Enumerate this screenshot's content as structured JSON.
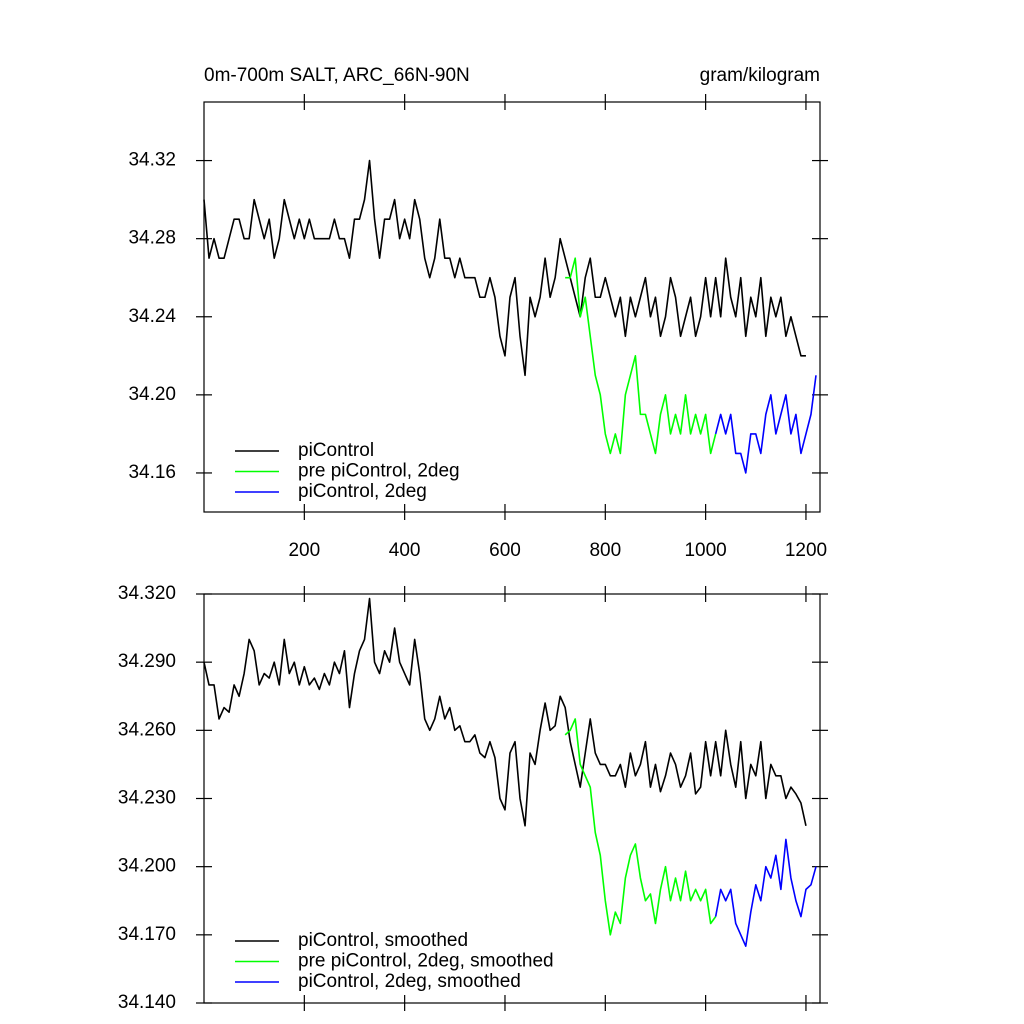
{
  "chart_data": [
    {
      "type": "line",
      "title": "0m-700m SALT, ARC_66N-90N",
      "units": "gram/kilogram",
      "xlim": [
        0,
        1228
      ],
      "xticks": [
        200,
        400,
        600,
        800,
        1000,
        1200
      ],
      "xtick_labels": true,
      "ylim": [
        34.14,
        34.35
      ],
      "yticks": [
        {
          "value": 34.16,
          "label": "34.16"
        },
        {
          "value": 34.2,
          "label": "34.20"
        },
        34.24,
        34.28,
        34.32
      ],
      "series": [
        {
          "name": "piControl",
          "color": "#000000",
          "x": [
            0,
            10,
            20,
            30,
            40,
            50,
            60,
            70,
            80,
            90,
            100,
            110,
            120,
            130,
            140,
            150,
            160,
            170,
            180,
            190,
            200,
            210,
            220,
            230,
            240,
            250,
            260,
            270,
            280,
            290,
            300,
            310,
            320,
            330,
            340,
            350,
            360,
            370,
            380,
            390,
            400,
            410,
            420,
            430,
            440,
            450,
            460,
            470,
            480,
            490,
            500,
            510,
            520,
            530,
            540,
            550,
            560,
            570,
            580,
            590,
            600,
            610,
            620,
            630,
            640,
            650,
            660,
            670,
            680,
            690,
            700,
            710,
            720,
            730,
            740,
            750,
            760,
            770,
            780,
            790,
            800,
            810,
            820,
            830,
            840,
            850,
            860,
            870,
            880,
            890,
            900,
            910,
            920,
            930,
            940,
            950,
            960,
            970,
            980,
            990,
            1000,
            1010,
            1020,
            1030,
            1040,
            1050,
            1060,
            1070,
            1080,
            1090,
            1100,
            1110,
            1120,
            1130,
            1140,
            1150,
            1160,
            1170,
            1180,
            1190,
            1200
          ],
          "values": [
            34.3,
            34.27,
            34.28,
            34.27,
            34.27,
            34.28,
            34.29,
            34.29,
            34.28,
            34.28,
            34.3,
            34.29,
            34.28,
            34.29,
            34.27,
            34.28,
            34.3,
            34.29,
            34.28,
            34.29,
            34.28,
            34.29,
            34.28,
            34.28,
            34.28,
            34.28,
            34.29,
            34.28,
            34.28,
            34.27,
            34.29,
            34.29,
            34.3,
            34.32,
            34.29,
            34.27,
            34.29,
            34.29,
            34.3,
            34.28,
            34.29,
            34.28,
            34.3,
            34.29,
            34.27,
            34.26,
            34.27,
            34.29,
            34.27,
            34.27,
            34.26,
            34.27,
            34.26,
            34.26,
            34.26,
            34.25,
            34.25,
            34.26,
            34.25,
            34.23,
            34.22,
            34.25,
            34.26,
            34.23,
            34.21,
            34.25,
            34.24,
            34.25,
            34.27,
            34.25,
            34.26,
            34.28,
            34.27,
            34.26,
            34.25,
            34.24,
            34.26,
            34.27,
            34.25,
            34.25,
            34.26,
            34.25,
            34.24,
            34.25,
            34.23,
            34.25,
            34.24,
            34.25,
            34.26,
            34.24,
            34.25,
            34.23,
            34.24,
            34.26,
            34.25,
            34.23,
            34.24,
            34.25,
            34.23,
            34.24,
            34.26,
            34.24,
            34.26,
            34.24,
            34.27,
            34.25,
            34.24,
            34.26,
            34.23,
            34.25,
            34.24,
            34.26,
            34.23,
            34.25,
            34.24,
            34.25,
            34.23,
            34.24,
            34.23,
            34.22,
            34.22
          ]
        },
        {
          "name": "pre piControl, 2deg",
          "color": "#00ff00",
          "x": [
            720,
            730,
            740,
            750,
            760,
            770,
            780,
            790,
            800,
            810,
            820,
            830,
            840,
            850,
            860,
            870,
            880,
            890,
            900,
            910,
            920,
            930,
            940,
            950,
            960,
            970,
            980,
            990,
            1000,
            1010,
            1020
          ],
          "values": [
            34.26,
            34.26,
            34.27,
            34.24,
            34.25,
            34.23,
            34.21,
            34.2,
            34.18,
            34.17,
            34.18,
            34.17,
            34.2,
            34.21,
            34.22,
            34.19,
            34.19,
            34.18,
            34.17,
            34.19,
            34.2,
            34.18,
            34.19,
            34.18,
            34.2,
            34.18,
            34.19,
            34.18,
            34.19,
            34.17,
            34.18
          ]
        },
        {
          "name": "piControl, 2deg",
          "color": "#0000ff",
          "x": [
            1020,
            1030,
            1040,
            1050,
            1060,
            1070,
            1080,
            1090,
            1100,
            1110,
            1120,
            1130,
            1140,
            1150,
            1160,
            1170,
            1180,
            1190,
            1200,
            1210,
            1220
          ],
          "values": [
            34.18,
            34.19,
            34.18,
            34.19,
            34.17,
            34.17,
            34.16,
            34.18,
            34.18,
            34.17,
            34.19,
            34.2,
            34.18,
            34.19,
            34.2,
            34.18,
            34.19,
            34.17,
            34.18,
            34.19,
            34.21
          ]
        }
      ]
    },
    {
      "type": "line",
      "xlim": [
        0,
        1228
      ],
      "xticks": [
        200,
        400,
        600,
        800,
        1000,
        1200
      ],
      "xtick_labels": false,
      "ylim": [
        34.14,
        34.32
      ],
      "yticks": [
        {
          "value": 34.14,
          "label": "34.140"
        },
        {
          "value": 34.17,
          "label": "34.170"
        },
        {
          "value": 34.2,
          "label": "34.200"
        },
        {
          "value": 34.23,
          "label": "34.230"
        },
        {
          "value": 34.26,
          "label": "34.260"
        },
        {
          "value": 34.29,
          "label": "34.290"
        },
        {
          "value": 34.32,
          "label": "34.320"
        }
      ],
      "series": [
        {
          "name": "piControl, smoothed",
          "color": "#000000",
          "x": [
            0,
            10,
            20,
            30,
            40,
            50,
            60,
            70,
            80,
            90,
            100,
            110,
            120,
            130,
            140,
            150,
            160,
            170,
            180,
            190,
            200,
            210,
            220,
            230,
            240,
            250,
            260,
            270,
            280,
            290,
            300,
            310,
            320,
            330,
            340,
            350,
            360,
            370,
            380,
            390,
            400,
            410,
            420,
            430,
            440,
            450,
            460,
            470,
            480,
            490,
            500,
            510,
            520,
            530,
            540,
            550,
            560,
            570,
            580,
            590,
            600,
            610,
            620,
            630,
            640,
            650,
            660,
            670,
            680,
            690,
            700,
            710,
            720,
            730,
            740,
            750,
            760,
            770,
            780,
            790,
            800,
            810,
            820,
            830,
            840,
            850,
            860,
            870,
            880,
            890,
            900,
            910,
            920,
            930,
            940,
            950,
            960,
            970,
            980,
            990,
            1000,
            1010,
            1020,
            1030,
            1040,
            1050,
            1060,
            1070,
            1080,
            1090,
            1100,
            1110,
            1120,
            1130,
            1140,
            1150,
            1160,
            1170,
            1180,
            1190,
            1200
          ],
          "values": [
            34.29,
            34.28,
            34.28,
            34.265,
            34.27,
            34.268,
            34.28,
            34.275,
            34.285,
            34.3,
            34.295,
            34.28,
            34.285,
            34.283,
            34.29,
            34.28,
            34.3,
            34.285,
            34.29,
            34.28,
            34.288,
            34.28,
            34.283,
            34.278,
            34.285,
            34.28,
            34.29,
            34.285,
            34.295,
            34.27,
            34.285,
            34.295,
            34.3,
            34.318,
            34.29,
            34.285,
            34.295,
            34.29,
            34.305,
            34.29,
            34.285,
            34.28,
            34.3,
            34.285,
            34.265,
            34.26,
            34.265,
            34.275,
            34.265,
            34.27,
            34.26,
            34.262,
            34.255,
            34.255,
            34.258,
            34.25,
            34.248,
            34.255,
            34.248,
            34.23,
            34.225,
            34.25,
            34.255,
            34.23,
            34.218,
            34.25,
            34.245,
            34.26,
            34.272,
            34.26,
            34.262,
            34.275,
            34.27,
            34.255,
            34.245,
            34.235,
            34.25,
            34.265,
            34.25,
            34.245,
            34.245,
            34.24,
            34.24,
            34.245,
            34.235,
            34.25,
            34.24,
            34.245,
            34.255,
            34.235,
            34.245,
            34.233,
            34.24,
            34.25,
            34.245,
            34.235,
            34.24,
            34.25,
            34.232,
            34.235,
            34.255,
            34.24,
            34.255,
            34.24,
            34.26,
            34.245,
            34.235,
            34.255,
            34.23,
            34.245,
            34.24,
            34.255,
            34.23,
            34.245,
            34.24,
            34.24,
            34.23,
            34.235,
            34.232,
            34.228,
            34.218
          ]
        },
        {
          "name": "pre piControl, 2deg, smoothed",
          "color": "#00ff00",
          "x": [
            720,
            730,
            740,
            750,
            760,
            770,
            780,
            790,
            800,
            810,
            820,
            830,
            840,
            850,
            860,
            870,
            880,
            890,
            900,
            910,
            920,
            930,
            940,
            950,
            960,
            970,
            980,
            990,
            1000,
            1010,
            1020
          ],
          "values": [
            34.258,
            34.26,
            34.265,
            34.245,
            34.24,
            34.235,
            34.215,
            34.205,
            34.185,
            34.17,
            34.18,
            34.175,
            34.195,
            34.205,
            34.21,
            34.195,
            34.185,
            34.188,
            34.175,
            34.19,
            34.2,
            34.185,
            34.195,
            34.185,
            34.198,
            34.185,
            34.19,
            34.185,
            34.19,
            34.175,
            34.178
          ]
        },
        {
          "name": "piControl, 2deg, smoothed",
          "color": "#0000ff",
          "x": [
            1020,
            1030,
            1040,
            1050,
            1060,
            1070,
            1080,
            1090,
            1100,
            1110,
            1120,
            1130,
            1140,
            1150,
            1160,
            1170,
            1180,
            1190,
            1200,
            1210,
            1220
          ],
          "values": [
            34.178,
            34.19,
            34.185,
            34.19,
            34.175,
            34.17,
            34.165,
            34.18,
            34.192,
            34.185,
            34.2,
            34.195,
            34.205,
            34.19,
            34.212,
            34.195,
            34.185,
            34.178,
            34.19,
            34.192,
            34.2
          ]
        }
      ]
    }
  ]
}
